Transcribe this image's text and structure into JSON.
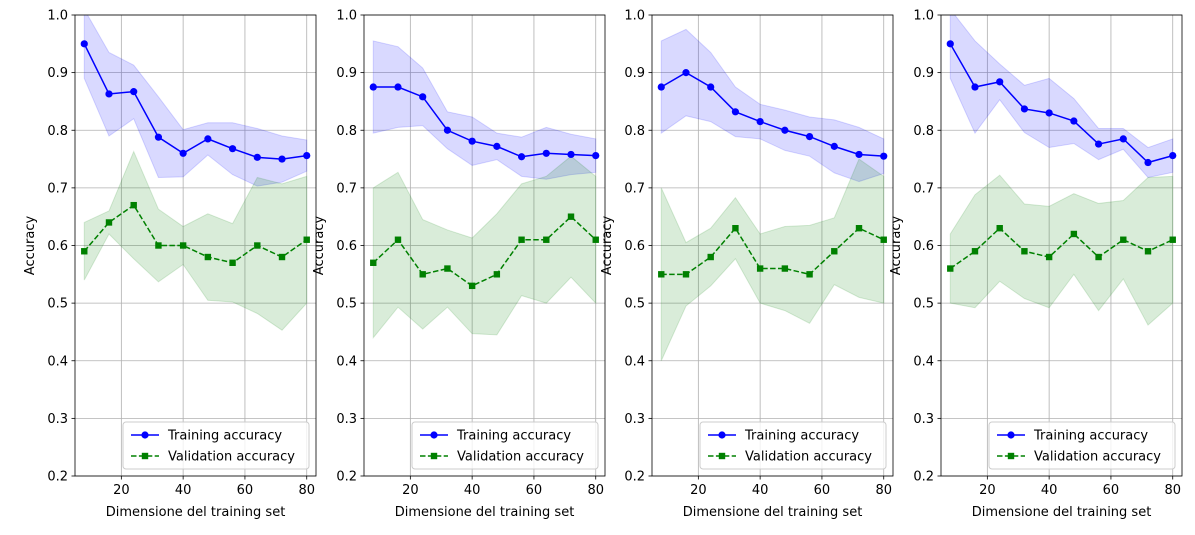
{
  "chart_data": [
    {
      "type": "line",
      "title": "",
      "xlabel": "Dimensione del training set",
      "ylabel": "Accuracy",
      "xlim": [
        5,
        83
      ],
      "ylim": [
        0.2,
        1.0
      ],
      "xticks": [
        20,
        40,
        60,
        80
      ],
      "yticks": [
        0.2,
        0.3,
        0.4,
        0.5,
        0.6,
        0.7,
        0.8,
        0.9,
        1.0
      ],
      "grid": true,
      "legend_position": "lower right",
      "x": [
        8,
        16,
        24,
        32,
        40,
        48,
        56,
        64,
        72,
        80
      ],
      "series": [
        {
          "name": "Training accuracy",
          "color": "#0000ff",
          "marker": "circle",
          "linestyle": "solid",
          "values": [
            0.95,
            0.863,
            0.867,
            0.788,
            0.76,
            0.785,
            0.768,
            0.753,
            0.75,
            0.756
          ],
          "band_upper": [
            1.01,
            0.935,
            0.913,
            0.858,
            0.801,
            0.813,
            0.813,
            0.803,
            0.79,
            0.783
          ],
          "band_lower": [
            0.89,
            0.79,
            0.82,
            0.718,
            0.719,
            0.757,
            0.723,
            0.703,
            0.71,
            0.729
          ]
        },
        {
          "name": "Validation accuracy",
          "color": "#008000",
          "marker": "square",
          "linestyle": "dashed",
          "values": [
            0.59,
            0.64,
            0.67,
            0.6,
            0.6,
            0.58,
            0.57,
            0.6,
            0.58,
            0.61
          ],
          "band_upper": [
            0.64,
            0.66,
            0.763,
            0.663,
            0.633,
            0.655,
            0.638,
            0.718,
            0.707,
            0.72
          ],
          "band_lower": [
            0.54,
            0.62,
            0.577,
            0.537,
            0.567,
            0.505,
            0.502,
            0.482,
            0.453,
            0.5
          ]
        }
      ]
    },
    {
      "type": "line",
      "title": "",
      "xlabel": "Dimensione del training set",
      "ylabel": "Accuracy",
      "xlim": [
        5,
        83
      ],
      "ylim": [
        0.2,
        1.0
      ],
      "xticks": [
        20,
        40,
        60,
        80
      ],
      "yticks": [
        0.2,
        0.3,
        0.4,
        0.5,
        0.6,
        0.7,
        0.8,
        0.9,
        1.0
      ],
      "grid": true,
      "legend_position": "lower right",
      "x": [
        8,
        16,
        24,
        32,
        40,
        48,
        56,
        64,
        72,
        80
      ],
      "series": [
        {
          "name": "Training accuracy",
          "color": "#0000ff",
          "marker": "circle",
          "linestyle": "solid",
          "values": [
            0.875,
            0.875,
            0.858,
            0.8,
            0.781,
            0.772,
            0.754,
            0.76,
            0.758,
            0.756
          ],
          "band_upper": [
            0.955,
            0.945,
            0.908,
            0.832,
            0.823,
            0.795,
            0.788,
            0.805,
            0.793,
            0.785
          ],
          "band_lower": [
            0.795,
            0.805,
            0.808,
            0.768,
            0.739,
            0.749,
            0.72,
            0.715,
            0.723,
            0.727
          ]
        },
        {
          "name": "Validation accuracy",
          "color": "#008000",
          "marker": "square",
          "linestyle": "dashed",
          "values": [
            0.57,
            0.61,
            0.55,
            0.56,
            0.53,
            0.55,
            0.61,
            0.61,
            0.65,
            0.61
          ],
          "band_upper": [
            0.7,
            0.727,
            0.645,
            0.627,
            0.613,
            0.655,
            0.707,
            0.72,
            0.755,
            0.72
          ],
          "band_lower": [
            0.44,
            0.493,
            0.455,
            0.493,
            0.447,
            0.445,
            0.513,
            0.5,
            0.545,
            0.5
          ]
        }
      ]
    },
    {
      "type": "line",
      "title": "",
      "xlabel": "Dimensione del training set",
      "ylabel": "Accuracy",
      "xlim": [
        5,
        83
      ],
      "ylim": [
        0.2,
        1.0
      ],
      "xticks": [
        20,
        40,
        60,
        80
      ],
      "yticks": [
        0.2,
        0.3,
        0.4,
        0.5,
        0.6,
        0.7,
        0.8,
        0.9,
        1.0
      ],
      "grid": true,
      "legend_position": "lower right",
      "x": [
        8,
        16,
        24,
        32,
        40,
        48,
        56,
        64,
        72,
        80
      ],
      "series": [
        {
          "name": "Training accuracy",
          "color": "#0000ff",
          "marker": "circle",
          "linestyle": "solid",
          "values": [
            0.875,
            0.9,
            0.875,
            0.832,
            0.815,
            0.8,
            0.789,
            0.772,
            0.758,
            0.755
          ],
          "band_upper": [
            0.955,
            0.975,
            0.935,
            0.875,
            0.845,
            0.835,
            0.823,
            0.818,
            0.805,
            0.785
          ],
          "band_lower": [
            0.795,
            0.825,
            0.815,
            0.789,
            0.785,
            0.765,
            0.755,
            0.726,
            0.711,
            0.725
          ]
        },
        {
          "name": "Validation accuracy",
          "color": "#008000",
          "marker": "square",
          "linestyle": "dashed",
          "values": [
            0.55,
            0.55,
            0.58,
            0.63,
            0.56,
            0.56,
            0.55,
            0.59,
            0.63,
            0.61
          ],
          "band_upper": [
            0.7,
            0.605,
            0.63,
            0.683,
            0.62,
            0.633,
            0.635,
            0.648,
            0.75,
            0.72
          ],
          "band_lower": [
            0.4,
            0.495,
            0.53,
            0.577,
            0.5,
            0.487,
            0.465,
            0.532,
            0.51,
            0.5
          ]
        }
      ]
    },
    {
      "type": "line",
      "title": "",
      "xlabel": "Dimensione del training set",
      "ylabel": "Accuracy",
      "xlim": [
        5,
        83
      ],
      "ylim": [
        0.2,
        1.0
      ],
      "xticks": [
        20,
        40,
        60,
        80
      ],
      "yticks": [
        0.2,
        0.3,
        0.4,
        0.5,
        0.6,
        0.7,
        0.8,
        0.9,
        1.0
      ],
      "grid": true,
      "legend_position": "lower right",
      "x": [
        8,
        16,
        24,
        32,
        40,
        48,
        56,
        64,
        72,
        80
      ],
      "series": [
        {
          "name": "Training accuracy",
          "color": "#0000ff",
          "marker": "circle",
          "linestyle": "solid",
          "values": [
            0.95,
            0.875,
            0.884,
            0.837,
            0.83,
            0.816,
            0.776,
            0.785,
            0.744,
            0.756
          ],
          "band_upper": [
            1.01,
            0.955,
            0.915,
            0.878,
            0.89,
            0.855,
            0.803,
            0.803,
            0.77,
            0.785
          ],
          "band_lower": [
            0.89,
            0.795,
            0.853,
            0.796,
            0.77,
            0.777,
            0.749,
            0.767,
            0.718,
            0.727
          ]
        },
        {
          "name": "Validation accuracy",
          "color": "#008000",
          "marker": "square",
          "linestyle": "dashed",
          "values": [
            0.56,
            0.59,
            0.63,
            0.59,
            0.58,
            0.62,
            0.58,
            0.61,
            0.59,
            0.61
          ],
          "band_upper": [
            0.62,
            0.688,
            0.722,
            0.672,
            0.668,
            0.69,
            0.673,
            0.678,
            0.718,
            0.72
          ],
          "band_lower": [
            0.5,
            0.492,
            0.538,
            0.508,
            0.492,
            0.55,
            0.487,
            0.542,
            0.462,
            0.5
          ]
        }
      ]
    }
  ]
}
